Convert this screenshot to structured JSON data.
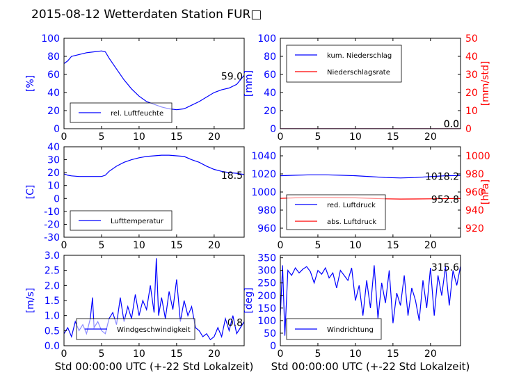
{
  "title": "2015-08-12 Wetterdaten Station FUR□",
  "colors": {
    "primary": "#0000ff",
    "secondary": "#ff0000",
    "axis": "#000000"
  },
  "chart_data": [
    {
      "id": "humidity",
      "type": "line",
      "xlim": [
        0,
        24
      ],
      "xticks": [
        0,
        5,
        10,
        15,
        20
      ],
      "ylim": [
        0,
        100
      ],
      "yticks": [
        0,
        20,
        40,
        60,
        80,
        100
      ],
      "ylabel": "[%]",
      "xlabel": "",
      "legend_position": "lower-left",
      "series": [
        {
          "name": "rel. Luftfeuchte",
          "color": "#0000ff",
          "x": [
            0,
            0.5,
            1,
            2,
            3,
            4,
            5,
            5.5,
            6,
            7,
            8,
            9,
            10,
            11,
            12,
            13,
            14,
            15,
            16,
            17,
            18,
            19,
            20,
            21,
            22,
            23,
            24
          ],
          "y": [
            72,
            75,
            80,
            82,
            84,
            85,
            86,
            85,
            78,
            66,
            54,
            44,
            36,
            30,
            27,
            24,
            22,
            21,
            22,
            26,
            30,
            35,
            40,
            43,
            45,
            49,
            59
          ]
        }
      ],
      "annotations": [
        {
          "text": "59.0",
          "x": 24,
          "y": 59.0
        }
      ]
    },
    {
      "id": "precipitation",
      "type": "line",
      "xlim": [
        0,
        24
      ],
      "xticks": [
        0,
        5,
        10,
        15,
        20
      ],
      "ylim": [
        0,
        100
      ],
      "yticks": [
        0,
        20,
        40,
        60,
        80,
        100
      ],
      "ylabel": "[mm]",
      "xlabel": "",
      "y2lim": [
        0,
        50
      ],
      "y2ticks": [
        0,
        10,
        20,
        30,
        40,
        50
      ],
      "y2label": "[mm/std]",
      "legend_position": "upper-left",
      "series": [
        {
          "name": "kum. Niederschlag",
          "color": "#0000ff",
          "axis": "y",
          "x": [
            0,
            24
          ],
          "y": [
            0,
            0
          ]
        },
        {
          "name": "Niederschlagsrate",
          "color": "#ff0000",
          "axis": "y2",
          "x": [
            0,
            24
          ],
          "y": [
            0,
            0
          ]
        }
      ],
      "annotations": [
        {
          "text": "0.0",
          "x": 24,
          "y": 0
        },
        {
          "text": "0.0",
          "x": 24,
          "y": 0
        }
      ]
    },
    {
      "id": "temperature",
      "type": "line",
      "xlim": [
        0,
        24
      ],
      "xticks": [
        0,
        5,
        10,
        15,
        20
      ],
      "ylim": [
        -30,
        40
      ],
      "yticks": [
        -30,
        -20,
        -10,
        0,
        10,
        20,
        30,
        40
      ],
      "ylabel": "[C]",
      "xlabel": "",
      "legend_position": "lower-left",
      "series": [
        {
          "name": "Lufttemperatur",
          "color": "#0000ff",
          "x": [
            0,
            0.5,
            1,
            2,
            3,
            4,
            5,
            5.5,
            6,
            7,
            8,
            9,
            10,
            11,
            12,
            13,
            14,
            15,
            16,
            17,
            18,
            19,
            20,
            21,
            22,
            23,
            24
          ],
          "y": [
            19,
            18,
            17.5,
            17,
            17,
            17,
            17,
            18,
            21,
            25,
            28,
            30,
            31.5,
            32.5,
            33,
            33.5,
            33.5,
            33,
            32.5,
            30,
            28,
            25,
            22.5,
            21,
            20,
            19.5,
            18.5
          ]
        }
      ],
      "annotations": [
        {
          "text": "18.5",
          "x": 24,
          "y": 18.5
        }
      ]
    },
    {
      "id": "pressure",
      "type": "line",
      "xlim": [
        0,
        24
      ],
      "xticks": [
        0,
        5,
        10,
        15,
        20
      ],
      "ylim": [
        950,
        1050
      ],
      "yticks": [
        960,
        980,
        1000,
        1020,
        1040
      ],
      "ylabel": "",
      "xlabel": "",
      "y2lim": [
        910,
        1010
      ],
      "y2ticks": [
        920,
        940,
        960,
        980,
        1000
      ],
      "y2label": "[hPa]",
      "legend_position": "lower-left",
      "series": [
        {
          "name": "red. Luftdruck",
          "color": "#0000ff",
          "axis": "y",
          "x": [
            0,
            2,
            4,
            6,
            8,
            10,
            12,
            14,
            16,
            18,
            20,
            22,
            24
          ],
          "y": [
            1018,
            1018.5,
            1019,
            1019,
            1018.5,
            1018,
            1017,
            1016,
            1015.5,
            1016,
            1017,
            1018,
            1018.2
          ]
        },
        {
          "name": "abs. Luftdruck",
          "color": "#ff0000",
          "axis": "y2",
          "x": [
            0,
            2,
            4,
            6,
            8,
            10,
            12,
            14,
            16,
            18,
            20,
            22,
            24
          ],
          "y": [
            953,
            953.5,
            954,
            954,
            953.8,
            953.5,
            953,
            952.5,
            952.2,
            952.3,
            952.5,
            952.7,
            952.8
          ]
        }
      ],
      "annotations": [
        {
          "text": "1018.2",
          "x": 24,
          "y": 1018.2,
          "axis": "y"
        },
        {
          "text": "952.8",
          "x": 24,
          "y": 952.8,
          "axis": "y2"
        }
      ]
    },
    {
      "id": "wind-speed",
      "type": "line",
      "xlim": [
        0,
        24
      ],
      "xticks": [
        0,
        5,
        10,
        15,
        20
      ],
      "ylim": [
        0,
        3
      ],
      "yticks": [
        0.0,
        0.5,
        1.0,
        1.5,
        2.0,
        2.5,
        3.0
      ],
      "ylabel": "[m/s]",
      "xlabel": "Std 00:00:00 UTC (+-22 Std Lokalzeit)",
      "legend_position": "lower-center",
      "series": [
        {
          "name": "Windgeschwindigkeit",
          "color": "#0000ff",
          "x": [
            0,
            0.5,
            1,
            1.5,
            2,
            2.5,
            3,
            3.5,
            3.8,
            4,
            4.5,
            5,
            5.5,
            6,
            6.5,
            7,
            7.5,
            8,
            8.5,
            9,
            9.5,
            10,
            10.5,
            11,
            11.5,
            12,
            12.3,
            12.6,
            13,
            13.5,
            14,
            14.5,
            15,
            15.5,
            16,
            16.5,
            17,
            17.5,
            18,
            18.5,
            19,
            19.5,
            20,
            20.5,
            21,
            21.5,
            22,
            22.5,
            23,
            23.5,
            24
          ],
          "y": [
            0.4,
            0.6,
            0.3,
            0.8,
            0.5,
            0.7,
            0.4,
            0.9,
            1.6,
            0.6,
            0.8,
            0.5,
            0.4,
            0.9,
            1.1,
            0.7,
            1.6,
            0.8,
            1.3,
            0.9,
            1.7,
            1.0,
            1.5,
            1.2,
            2.0,
            1.1,
            2.9,
            1.0,
            1.6,
            0.9,
            1.8,
            1.2,
            2.2,
            0.8,
            1.5,
            1.0,
            1.3,
            0.6,
            0.5,
            0.3,
            0.4,
            0.2,
            0.3,
            0.6,
            0.3,
            0.9,
            0.5,
            1.0,
            0.4,
            0.6,
            0.8
          ]
        }
      ],
      "annotations": [
        {
          "text": "0.8",
          "x": 24,
          "y": 0.8
        }
      ]
    },
    {
      "id": "wind-direction",
      "type": "line",
      "xlim": [
        0,
        24
      ],
      "xticks": [
        0,
        5,
        10,
        15,
        20
      ],
      "ylim": [
        0,
        360
      ],
      "yticks": [
        0,
        50,
        100,
        150,
        200,
        250,
        300,
        350
      ],
      "ylabel": "[deg]",
      "xlabel": "Std 00:00:00 UTC (+-22 Std Lokalzeit)",
      "legend_position": "lower-left",
      "series": [
        {
          "name": "Windrichtung",
          "color": "#0000ff",
          "x": [
            0,
            0.3,
            0.6,
            1,
            1.5,
            2,
            2.5,
            3,
            3.5,
            4,
            4.5,
            5,
            5.5,
            6,
            6.5,
            7,
            7.5,
            8,
            8.5,
            9,
            9.5,
            10,
            10.5,
            11,
            11.5,
            12,
            12.5,
            13,
            13.5,
            14,
            14.5,
            15,
            15.5,
            16,
            16.5,
            17,
            17.5,
            18,
            18.5,
            19,
            19.5,
            20,
            20.5,
            21,
            21.5,
            22,
            22.5,
            23,
            23.5,
            24
          ],
          "y": [
            120,
            320,
            40,
            300,
            280,
            310,
            290,
            305,
            315,
            295,
            250,
            300,
            285,
            310,
            270,
            290,
            230,
            300,
            280,
            260,
            310,
            180,
            240,
            120,
            260,
            150,
            320,
            110,
            250,
            170,
            300,
            90,
            210,
            160,
            280,
            120,
            230,
            180,
            100,
            260,
            150,
            310,
            120,
            280,
            200,
            315,
            160,
            300,
            240,
            316
          ]
        }
      ],
      "annotations": [
        {
          "text": "315.6",
          "x": 24,
          "y": 315.6
        }
      ]
    }
  ]
}
